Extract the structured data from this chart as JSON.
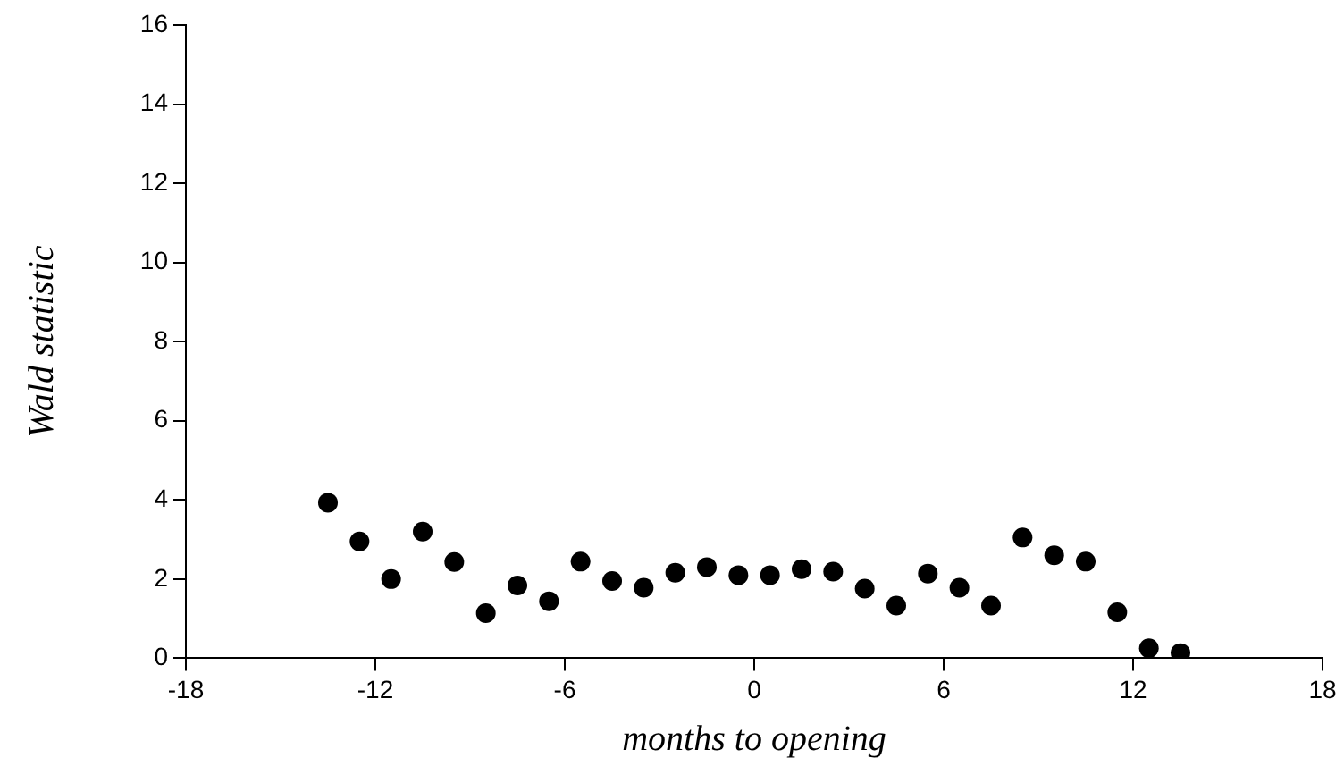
{
  "chart_data": {
    "type": "scatter",
    "xlabel": "months to opening",
    "ylabel": "Wald statistic",
    "x": [
      -13.5,
      -12.5,
      -11.5,
      -10.5,
      -9.5,
      -8.5,
      -7.5,
      -6.5,
      -5.5,
      -4.5,
      -3.5,
      -2.5,
      -1.5,
      -0.5,
      0.5,
      1.5,
      2.5,
      3.5,
      4.5,
      5.5,
      6.5,
      7.5,
      8.5,
      9.5,
      10.5,
      11.5,
      12.5,
      13.5
    ],
    "series": [
      {
        "color": "#000000",
        "values": [
          3.93,
          2.95,
          2.0,
          3.2,
          2.43,
          1.14,
          1.84,
          1.44,
          2.44,
          1.95,
          1.78,
          2.16,
          2.3,
          2.1,
          2.1,
          2.25,
          2.19,
          1.76,
          1.33,
          2.14,
          1.78,
          1.33,
          3.05,
          2.6,
          2.44,
          1.16,
          0.25,
          0.13
        ]
      }
    ],
    "xlim": [
      -18,
      18
    ],
    "xticks": [
      -18,
      -12,
      -6,
      0,
      6,
      12,
      18
    ],
    "ylim": [
      0,
      16
    ],
    "yticks": [
      0,
      2,
      4,
      6,
      8,
      10,
      12,
      14,
      16
    ],
    "grid": false,
    "legend": false,
    "marker": "circle"
  }
}
